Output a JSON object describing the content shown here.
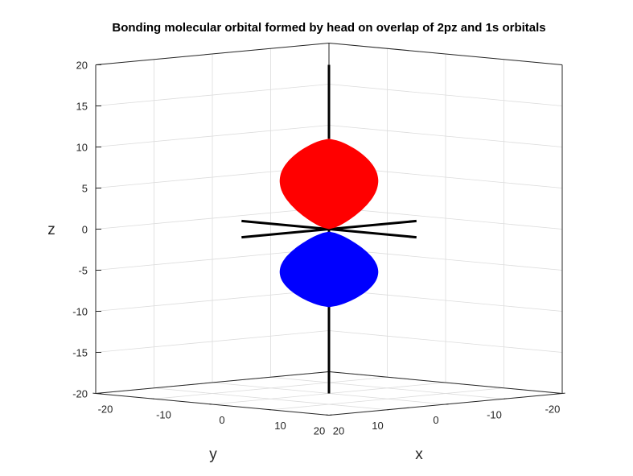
{
  "chart_data": {
    "type": "surface3d",
    "title": "Bonding molecular orbital formed by head on overlap of 2pz and 1s orbitals",
    "xlabel": "x",
    "ylabel": "y",
    "zlabel": "z",
    "xlim": [
      -20,
      20
    ],
    "ylim": [
      -20,
      20
    ],
    "zlim": [
      -20,
      20
    ],
    "grid": true,
    "x_ticks": [
      -20,
      -10,
      0,
      10,
      20
    ],
    "y_ticks": [
      -20,
      -10,
      0,
      10,
      20
    ],
    "z_ticks": [
      -20,
      -15,
      -10,
      -5,
      0,
      5,
      10,
      15,
      20
    ],
    "x_tick_labels": [
      "-20",
      "-10",
      "0",
      "10",
      "20"
    ],
    "y_tick_labels": [
      "-20",
      "-10",
      "0",
      "10",
      "20"
    ],
    "z_tick_labels": [
      "-20",
      "-15",
      "-10",
      "-5",
      "0",
      "5",
      "10",
      "15",
      "20"
    ],
    "reference_axes": [
      {
        "axis": "z",
        "from": -20,
        "to": 20,
        "color": "#000000"
      },
      {
        "axis": "x",
        "from": -15,
        "to": 15,
        "color": "#000000"
      },
      {
        "axis": "y",
        "from": -15,
        "to": 15,
        "color": "#000000"
      }
    ],
    "lobes": [
      {
        "name": "positive lobe",
        "color": "#ff0000",
        "z_range": [
          0,
          11
        ],
        "max_radius": 6.3
      },
      {
        "name": "negative lobe",
        "color": "#0000ff",
        "z_range": [
          -9.5,
          -0.3
        ],
        "max_radius": 6.3
      }
    ]
  }
}
